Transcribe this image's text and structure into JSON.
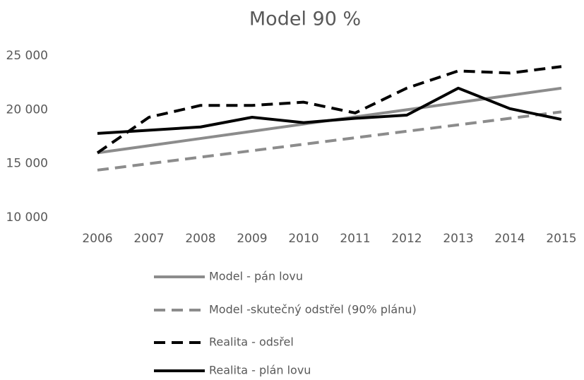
{
  "chart_data": {
    "type": "line",
    "title": "Model 90 %",
    "categories": [
      "2006",
      "2007",
      "2008",
      "2009",
      "2010",
      "2011",
      "2012",
      "2013",
      "2014",
      "2015"
    ],
    "ylim": [
      10000,
      25000
    ],
    "yticks": [
      {
        "value": 10000,
        "label": "10 000"
      },
      {
        "value": 15000,
        "label": "15 000"
      },
      {
        "value": 20000,
        "label": "20 000"
      },
      {
        "value": 25000,
        "label": "25 000"
      }
    ],
    "grid": false,
    "legend": "bottom",
    "series": [
      {
        "name": "Model - pán lovu",
        "color": "#8c8c8c",
        "dash": false,
        "values": [
          16000,
          16667,
          17333,
          18000,
          18667,
          19333,
          20000,
          20667,
          21333,
          22000
        ]
      },
      {
        "name": "Model -skutečný odstřel (90% plánu)",
        "color": "#8c8c8c",
        "dash": true,
        "values": [
          14400,
          15000,
          15600,
          16200,
          16800,
          17400,
          18000,
          18600,
          19200,
          19800
        ]
      },
      {
        "name": "Realita - odsřel",
        "color": "#000000",
        "dash": true,
        "values": [
          16000,
          19300,
          20400,
          20400,
          20700,
          19700,
          22000,
          23600,
          23400,
          24000
        ]
      },
      {
        "name": "Realita - plán lovu",
        "color": "#000000",
        "dash": false,
        "values": [
          17800,
          18100,
          18400,
          19300,
          18800,
          19200,
          19500,
          22000,
          20100,
          19100
        ]
      }
    ]
  }
}
